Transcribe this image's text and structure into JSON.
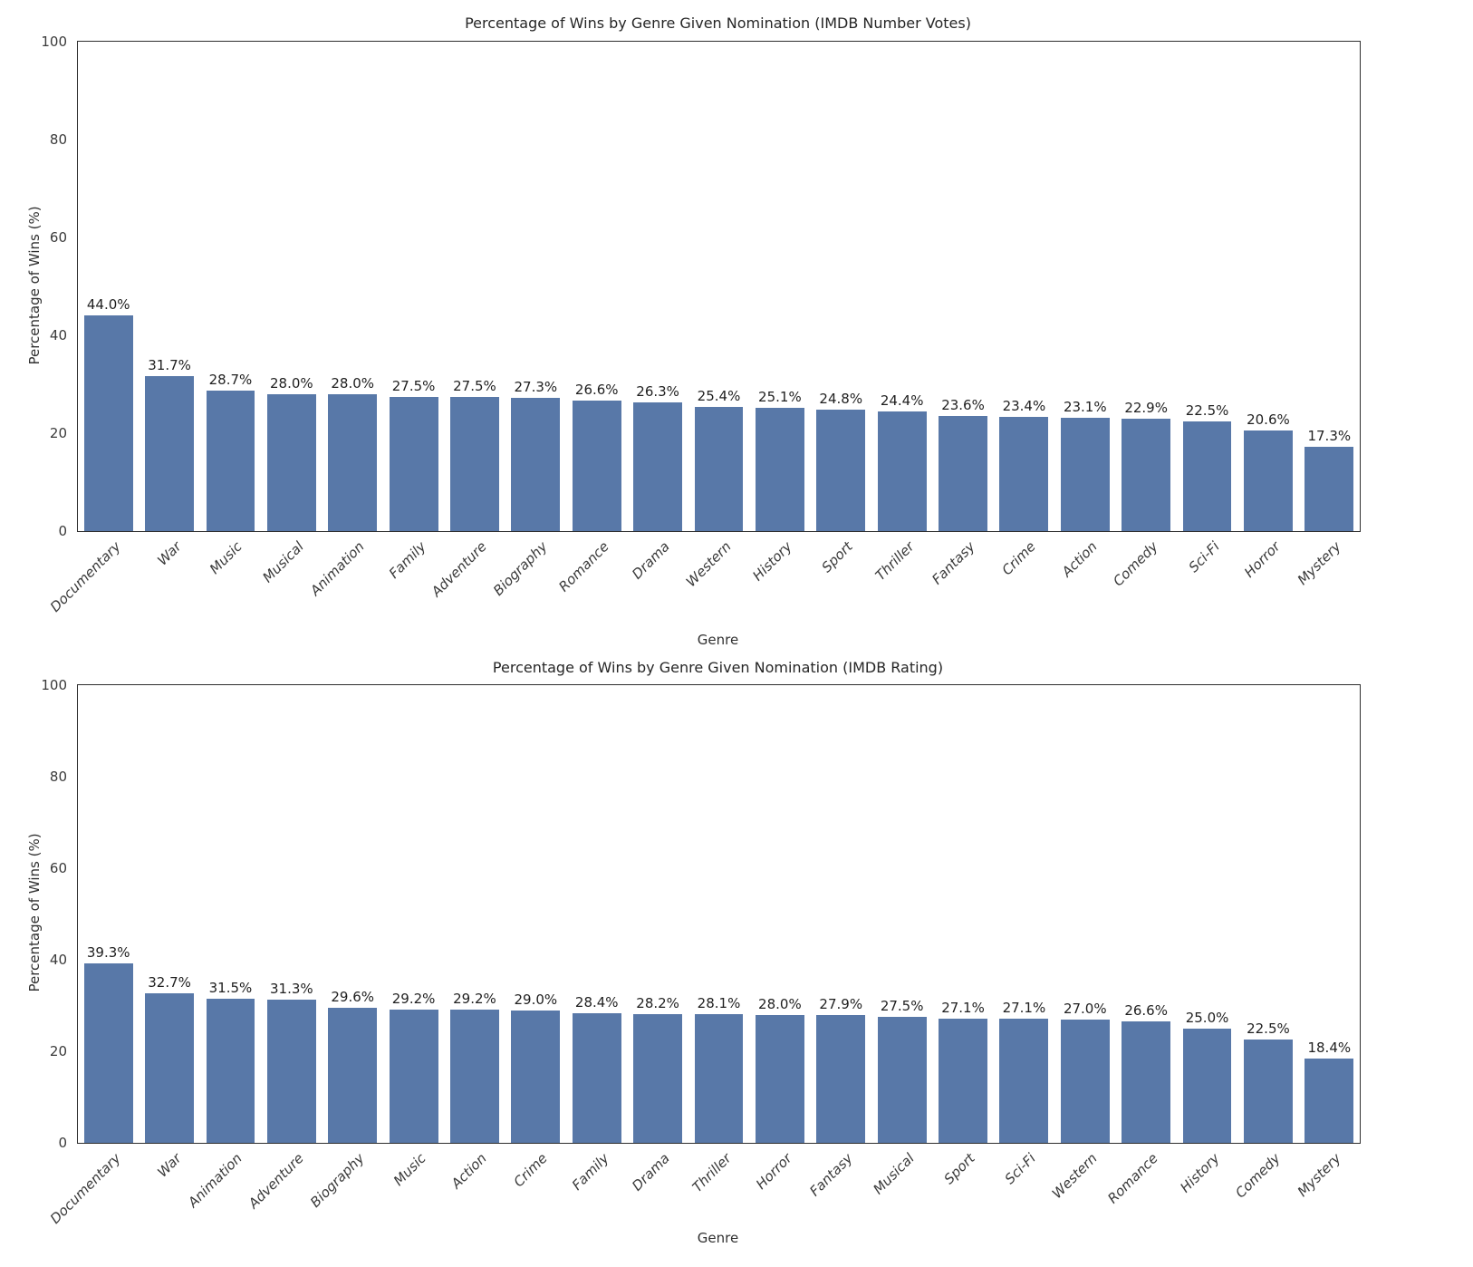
{
  "chart_data": [
    {
      "type": "bar",
      "title": "Percentage of Wins by Genre Given Nomination (IMDB Number Votes)",
      "xlabel": "Genre",
      "ylabel": "Percentage of Wins (%)",
      "ylim": [
        0,
        100
      ],
      "yticks": [
        0,
        20,
        40,
        60,
        80,
        100
      ],
      "grid": false,
      "legend": false,
      "bar_color": "#5878a8",
      "categories": [
        "Documentary",
        "War",
        "Music",
        "Musical",
        "Animation",
        "Family",
        "Adventure",
        "Biography",
        "Romance",
        "Drama",
        "Western",
        "History",
        "Sport",
        "Thriller",
        "Fantasy",
        "Crime",
        "Action",
        "Comedy",
        "Sci-Fi",
        "Horror",
        "Mystery"
      ],
      "values": [
        44.0,
        31.7,
        28.7,
        28.0,
        28.0,
        27.5,
        27.5,
        27.3,
        26.6,
        26.3,
        25.4,
        25.1,
        24.8,
        24.4,
        23.6,
        23.4,
        23.1,
        22.9,
        22.5,
        20.6,
        17.3
      ],
      "bar_labels": [
        "44.0%",
        "31.7%",
        "28.7%",
        "28.0%",
        "28.0%",
        "27.5%",
        "27.5%",
        "27.3%",
        "26.6%",
        "26.3%",
        "25.4%",
        "25.1%",
        "24.8%",
        "24.4%",
        "23.6%",
        "23.4%",
        "23.1%",
        "22.9%",
        "22.5%",
        "20.6%",
        "17.3%"
      ]
    },
    {
      "type": "bar",
      "title": "Percentage of Wins by Genre Given Nomination (IMDB Rating)",
      "xlabel": "Genre",
      "ylabel": "Percentage of Wins (%)",
      "ylim": [
        0,
        100
      ],
      "yticks": [
        0,
        20,
        40,
        60,
        80,
        100
      ],
      "grid": false,
      "legend": false,
      "bar_color": "#5878a8",
      "categories": [
        "Documentary",
        "War",
        "Animation",
        "Adventure",
        "Biography",
        "Music",
        "Action",
        "Crime",
        "Family",
        "Drama",
        "Thriller",
        "Horror",
        "Fantasy",
        "Musical",
        "Sport",
        "Sci-Fi",
        "Western",
        "Romance",
        "History",
        "Comedy",
        "Mystery"
      ],
      "values": [
        39.3,
        32.7,
        31.5,
        31.3,
        29.6,
        29.2,
        29.2,
        29.0,
        28.4,
        28.2,
        28.1,
        28.0,
        27.9,
        27.5,
        27.1,
        27.1,
        27.0,
        26.6,
        25.0,
        22.5,
        18.4
      ],
      "bar_labels": [
        "39.3%",
        "32.7%",
        "31.5%",
        "31.3%",
        "29.6%",
        "29.2%",
        "29.2%",
        "29.0%",
        "28.4%",
        "28.2%",
        "28.1%",
        "28.0%",
        "27.9%",
        "27.5%",
        "27.1%",
        "27.1%",
        "27.0%",
        "26.6%",
        "25.0%",
        "22.5%",
        "18.4%"
      ]
    }
  ]
}
